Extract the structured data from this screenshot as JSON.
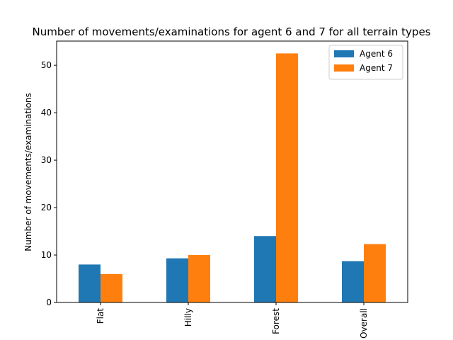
{
  "chart_data": {
    "type": "bar",
    "title": "Number of movements/examinations for agent 6 and 7 for all  terrain types",
    "xlabel": "",
    "ylabel": "Number of movements/examinations",
    "categories": [
      "Flat",
      "Hilly",
      "Forest",
      "Overall"
    ],
    "series": [
      {
        "name": "Agent 6",
        "color": "#1f77b4",
        "values": [
          8.0,
          9.3,
          14.0,
          8.7
        ]
      },
      {
        "name": "Agent 7",
        "color": "#ff7f0e",
        "values": [
          6.0,
          10.0,
          52.5,
          12.3
        ]
      }
    ],
    "ylim": [
      0,
      55.1
    ],
    "yticks": [
      0,
      10,
      20,
      30,
      40,
      50
    ],
    "grid": false,
    "legend_position": "top-right",
    "xtick_rotation": "vertical"
  }
}
